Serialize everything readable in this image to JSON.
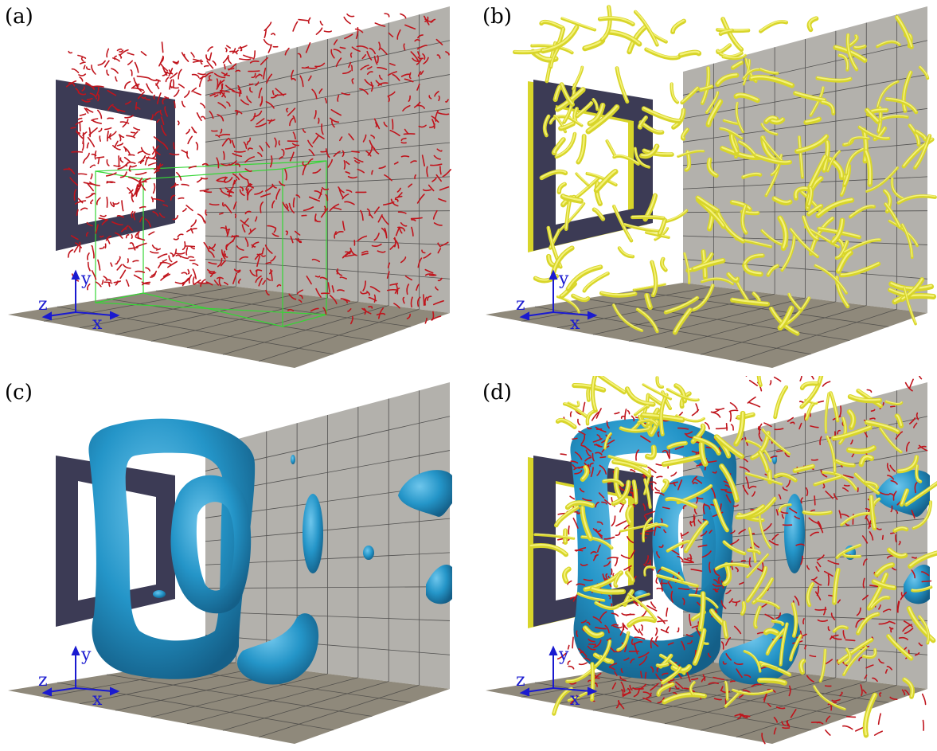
{
  "panels": [
    {
      "label": "(a)",
      "axes": {
        "x": "x",
        "y": "y",
        "z": "z"
      },
      "features": [
        "square-frame",
        "vortex-filaments-red",
        "green-bounding-box"
      ]
    },
    {
      "label": "(b)",
      "axes": {
        "x": "x",
        "y": "y",
        "z": "z"
      },
      "features": [
        "square-frame",
        "vortex-tubes-yellow"
      ]
    },
    {
      "label": "(c)",
      "axes": {
        "x": "x",
        "y": "y",
        "z": "z"
      },
      "features": [
        "square-frame",
        "vortex-rings-blue"
      ]
    },
    {
      "label": "(d)",
      "axes": {
        "x": "x",
        "y": "y",
        "z": "z"
      },
      "features": [
        "square-frame",
        "vortex-rings-blue",
        "vortex-tubes-yellow",
        "vortex-filaments-red"
      ]
    }
  ],
  "colors": {
    "wall": "#b3b1ac",
    "floor": "#8f897b",
    "grid": "#3a3a3a",
    "frame": "#3c3b55",
    "red": "#c0141c",
    "yellow": "#d8d52a",
    "blue": "#2495c8",
    "green": "#35d635",
    "axis": "#1a1ad0"
  }
}
